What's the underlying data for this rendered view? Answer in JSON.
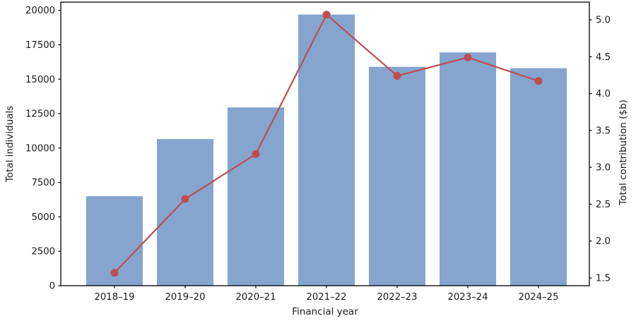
{
  "chart_data": {
    "type": "bar",
    "subtype": "bar-line-combo-dual-axis",
    "title": "",
    "categories": [
      "2018–19",
      "2019–20",
      "2020–21",
      "2021–22",
      "2022–23",
      "2023–24",
      "2024–25"
    ],
    "series": [
      {
        "name": "Total individuals",
        "kind": "bar",
        "axis": "left",
        "values": [
          6500,
          10650,
          12950,
          19700,
          15900,
          16950,
          15800
        ],
        "color": "#85a5cf"
      },
      {
        "name": "Total contribution ($b)",
        "kind": "line",
        "axis": "right",
        "values": [
          1.57,
          2.57,
          3.18,
          5.07,
          4.24,
          4.49,
          4.17
        ],
        "color": "#bf4d4d"
      }
    ],
    "xlabel": "Financial year",
    "ylabel_left": "Total individuals",
    "ylabel_right": "Total contribution ($b)",
    "left_axis": {
      "ticks": [
        0,
        2500,
        5000,
        7500,
        10000,
        12500,
        15000,
        17500,
        20000
      ],
      "range": [
        0,
        20600
      ],
      "format": "integer"
    },
    "right_axis": {
      "ticks": [
        1.5,
        2.0,
        2.5,
        3.0,
        3.5,
        4.0,
        4.5,
        5.0
      ],
      "range": [
        1.395,
        5.24
      ],
      "format": "one_decimal"
    },
    "grid": false,
    "legend": "none",
    "bar_width_ratio": 0.8
  },
  "colors": {
    "bar_fill": "#85a5cf",
    "line_stroke": "#bf4d4d",
    "marker_fill": "#bf4d4d",
    "spine": "#000000",
    "tick_text": "#1a1a1a",
    "background": "#ffffff"
  }
}
